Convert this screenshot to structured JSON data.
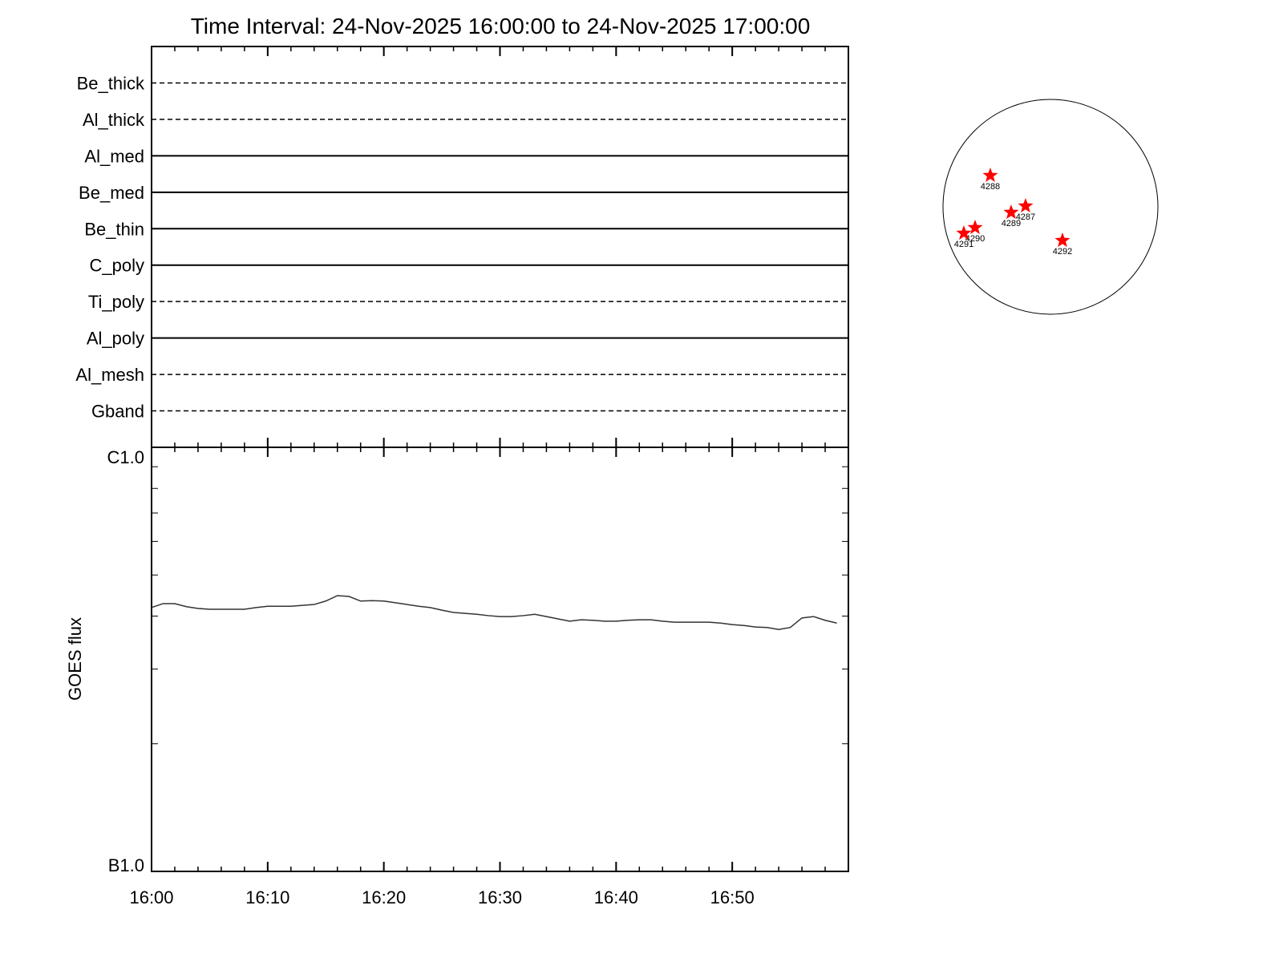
{
  "chart_data": [
    {
      "type": "timeline",
      "title": "Time Interval: 24-Nov-2025 16:00:00 to 24-Nov-2025 17:00:00",
      "categories": [
        "Be_thick",
        "Al_thick",
        "Al_med",
        "Be_med",
        "Be_thin",
        "C_poly",
        "Ti_poly",
        "Al_poly",
        "Al_mesh",
        "Gband"
      ],
      "line_styles": [
        "dashed",
        "dashed",
        "solid",
        "solid",
        "solid",
        "solid",
        "dashed",
        "solid",
        "dashed",
        "dashed"
      ],
      "xlim": [
        "16:00",
        "17:00"
      ]
    },
    {
      "type": "line",
      "ylabel": "GOES flux",
      "log_y": true,
      "xlim": [
        "16:00",
        "17:00"
      ],
      "xticks": [
        "16:00",
        "16:10",
        "16:20",
        "16:30",
        "16:40",
        "16:50"
      ],
      "minor_xtick_interval_minutes": 2,
      "ylim": [
        1e-07,
        1e-06
      ],
      "yticks": [
        {
          "value": 1e-07,
          "label": "B1.0"
        },
        {
          "value": 1e-06,
          "label": "C1.0"
        }
      ],
      "minor_yticks": [
        2e-07,
        3e-07,
        4e-07,
        5e-07,
        6e-07,
        7e-07,
        8e-07,
        9e-07
      ],
      "x": [
        "16:00",
        "16:01",
        "16:02",
        "16:03",
        "16:04",
        "16:05",
        "16:06",
        "16:07",
        "16:08",
        "16:09",
        "16:10",
        "16:11",
        "16:12",
        "16:13",
        "16:14",
        "16:15",
        "16:16",
        "16:17",
        "16:18",
        "16:19",
        "16:20",
        "16:21",
        "16:22",
        "16:23",
        "16:24",
        "16:25",
        "16:26",
        "16:27",
        "16:28",
        "16:29",
        "16:30",
        "16:31",
        "16:32",
        "16:33",
        "16:34",
        "16:35",
        "16:36",
        "16:37",
        "16:38",
        "16:39",
        "16:40",
        "16:41",
        "16:42",
        "16:43",
        "16:44",
        "16:45",
        "16:46",
        "16:47",
        "16:48",
        "16:49",
        "16:50",
        "16:51",
        "16:52",
        "16:53",
        "16:54",
        "16:55",
        "16:56",
        "16:57",
        "16:58",
        "16:59"
      ],
      "series": [
        {
          "color": "#333333",
          "values": [
            4.19e-07,
            4.28e-07,
            4.28e-07,
            4.21e-07,
            4.17e-07,
            4.15e-07,
            4.15e-07,
            4.15e-07,
            4.15e-07,
            4.19e-07,
            4.22e-07,
            4.22e-07,
            4.22e-07,
            4.24e-07,
            4.26e-07,
            4.34e-07,
            4.47e-07,
            4.45e-07,
            4.34e-07,
            4.35e-07,
            4.34e-07,
            4.3e-07,
            4.26e-07,
            4.22e-07,
            4.19e-07,
            4.13e-07,
            4.08e-07,
            4.06e-07,
            4.04e-07,
            4.01e-07,
            3.99e-07,
            3.99e-07,
            4.01e-07,
            4.04e-07,
            3.99e-07,
            3.94e-07,
            3.89e-07,
            3.92e-07,
            3.91e-07,
            3.89e-07,
            3.89e-07,
            3.91e-07,
            3.92e-07,
            3.92e-07,
            3.89e-07,
            3.87e-07,
            3.87e-07,
            3.87e-07,
            3.87e-07,
            3.85e-07,
            3.82e-07,
            3.8e-07,
            3.77e-07,
            3.76e-07,
            3.72e-07,
            3.76e-07,
            3.96e-07,
            3.99e-07,
            3.91e-07,
            3.85e-07
          ]
        }
      ]
    },
    {
      "type": "disk",
      "solar_radius": 975,
      "color": "#ff0000",
      "regions": [
        {
          "label": "4288",
          "x": -546,
          "y": 284
        },
        {
          "label": "4287",
          "x": -226,
          "y": 7
        },
        {
          "label": "4289",
          "x": -357,
          "y": -51
        },
        {
          "label": "4290",
          "x": -684,
          "y": -189
        },
        {
          "label": "4291",
          "x": -786,
          "y": -240
        },
        {
          "label": "4292",
          "x": 109,
          "y": -306
        }
      ]
    }
  ]
}
